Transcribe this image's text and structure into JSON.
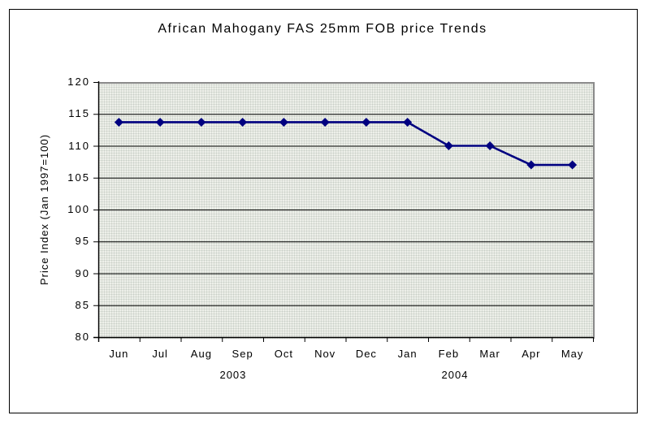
{
  "chart_data": {
    "type": "line",
    "title": "African Mahogany FAS 25mm FOB price Trends",
    "ylabel": "Price Index (Jan 1997=100)",
    "xlabel": "",
    "categories": [
      "Jun",
      "Jul",
      "Aug",
      "Sep",
      "Oct",
      "Nov",
      "Dec",
      "Jan",
      "Feb",
      "Mar",
      "Apr",
      "May"
    ],
    "values": [
      113.7,
      113.7,
      113.7,
      113.7,
      113.7,
      113.7,
      113.7,
      113.7,
      110,
      110,
      107,
      107
    ],
    "year_labels": [
      {
        "text": "2003",
        "position": 2.77
      },
      {
        "text": "2004",
        "position": 8.15
      }
    ],
    "ylim": [
      80,
      120
    ],
    "ytick_step": 5,
    "grid": "horizontal",
    "legend": "none",
    "series_name": "African Mahogany FAS 25mm FOB price index",
    "colors": {
      "line": "#000080",
      "marker": "#000080",
      "gridline": "#000000",
      "axis": "#000000",
      "plot_area_fill": "#edefe9",
      "plot_area_border": "#8a8a8a",
      "chart_background": "#ffffff",
      "outer_border": "#000000"
    },
    "marker_shape": "diamond"
  }
}
